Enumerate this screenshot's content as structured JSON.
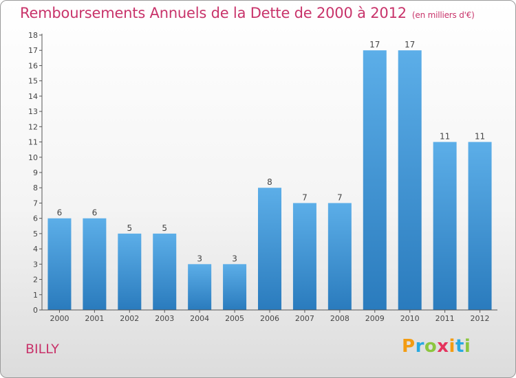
{
  "header": {
    "title": "Remboursements Annuels de la Dette de 2000 à 2012",
    "unit": "(en milliers d'€)"
  },
  "footer": {
    "commune": "BILLY",
    "logo": {
      "letters": [
        "P",
        "r",
        "o",
        "x",
        "i",
        "t",
        "i"
      ],
      "colors": [
        "#f39c12",
        "#27a9e1",
        "#8cc63f",
        "#e5335d",
        "#f39c12",
        "#27a9e1",
        "#8cc63f"
      ]
    }
  },
  "chart_data": {
    "type": "bar",
    "title": "Remboursements Annuels de la Dette de 2000 à 2012",
    "subtitle": "(en milliers d'€)",
    "categories": [
      "2000",
      "2001",
      "2002",
      "2003",
      "2004",
      "2005",
      "2006",
      "2007",
      "2008",
      "2009",
      "2010",
      "2011",
      "2012"
    ],
    "values": [
      6,
      6,
      5,
      5,
      3,
      3,
      8,
      7,
      7,
      17,
      17,
      11,
      11
    ],
    "ylim": [
      0,
      18
    ],
    "yticks": [
      0,
      1,
      2,
      3,
      4,
      5,
      6,
      7,
      8,
      9,
      10,
      11,
      12,
      13,
      14,
      15,
      16,
      17,
      18
    ],
    "grid": false,
    "colors": {
      "bar_top": "#5caee8",
      "bar_bottom": "#2a7bbd",
      "axis": "#555555",
      "label": "#444444"
    }
  }
}
